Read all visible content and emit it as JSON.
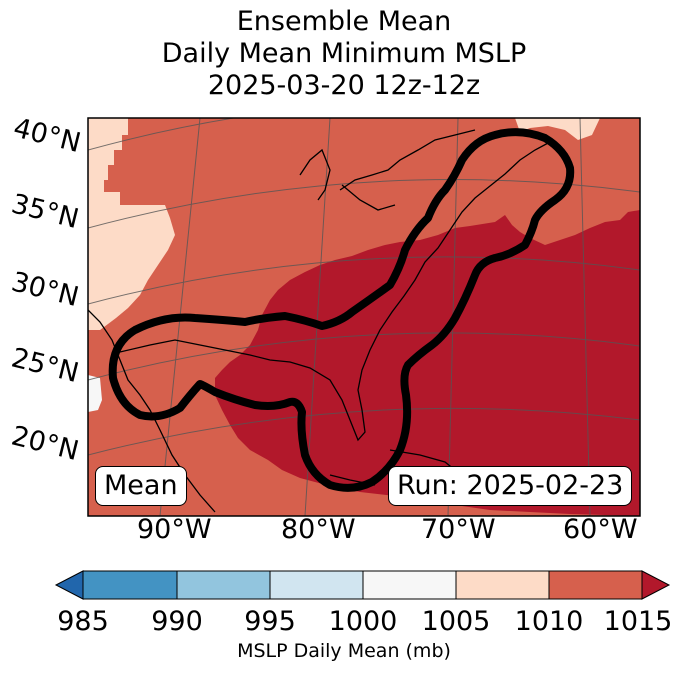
{
  "title": {
    "line1": "Ensemble Mean",
    "line2": "Daily Mean Minimum MSLP",
    "line3": "2025-03-20 12z-12z"
  },
  "map": {
    "lat_labels": [
      "40°N",
      "35°N",
      "30°N",
      "25°N",
      "20°N"
    ],
    "lon_labels": [
      "90°W",
      "80°W",
      "70°W",
      "60°W"
    ],
    "mean_box": "Mean",
    "run_box": "Run: 2025-02-23",
    "colors": {
      "c1005_1010": "#fddbc7",
      "c1010_1015": "#d6604d",
      "c1015_plus": "#b2182b",
      "c1000_1005": "#f7f7f7",
      "outline": "#000000"
    }
  },
  "colorbar": {
    "ticks": [
      "985",
      "990",
      "995",
      "1000",
      "1005",
      "1010",
      "1015"
    ],
    "colors": [
      "#2166ac",
      "#4393c3",
      "#92c5de",
      "#d1e5f0",
      "#f7f7f7",
      "#fddbc7",
      "#d6604d",
      "#b2182b"
    ],
    "label": "MSLP Daily Mean (mb)"
  }
}
